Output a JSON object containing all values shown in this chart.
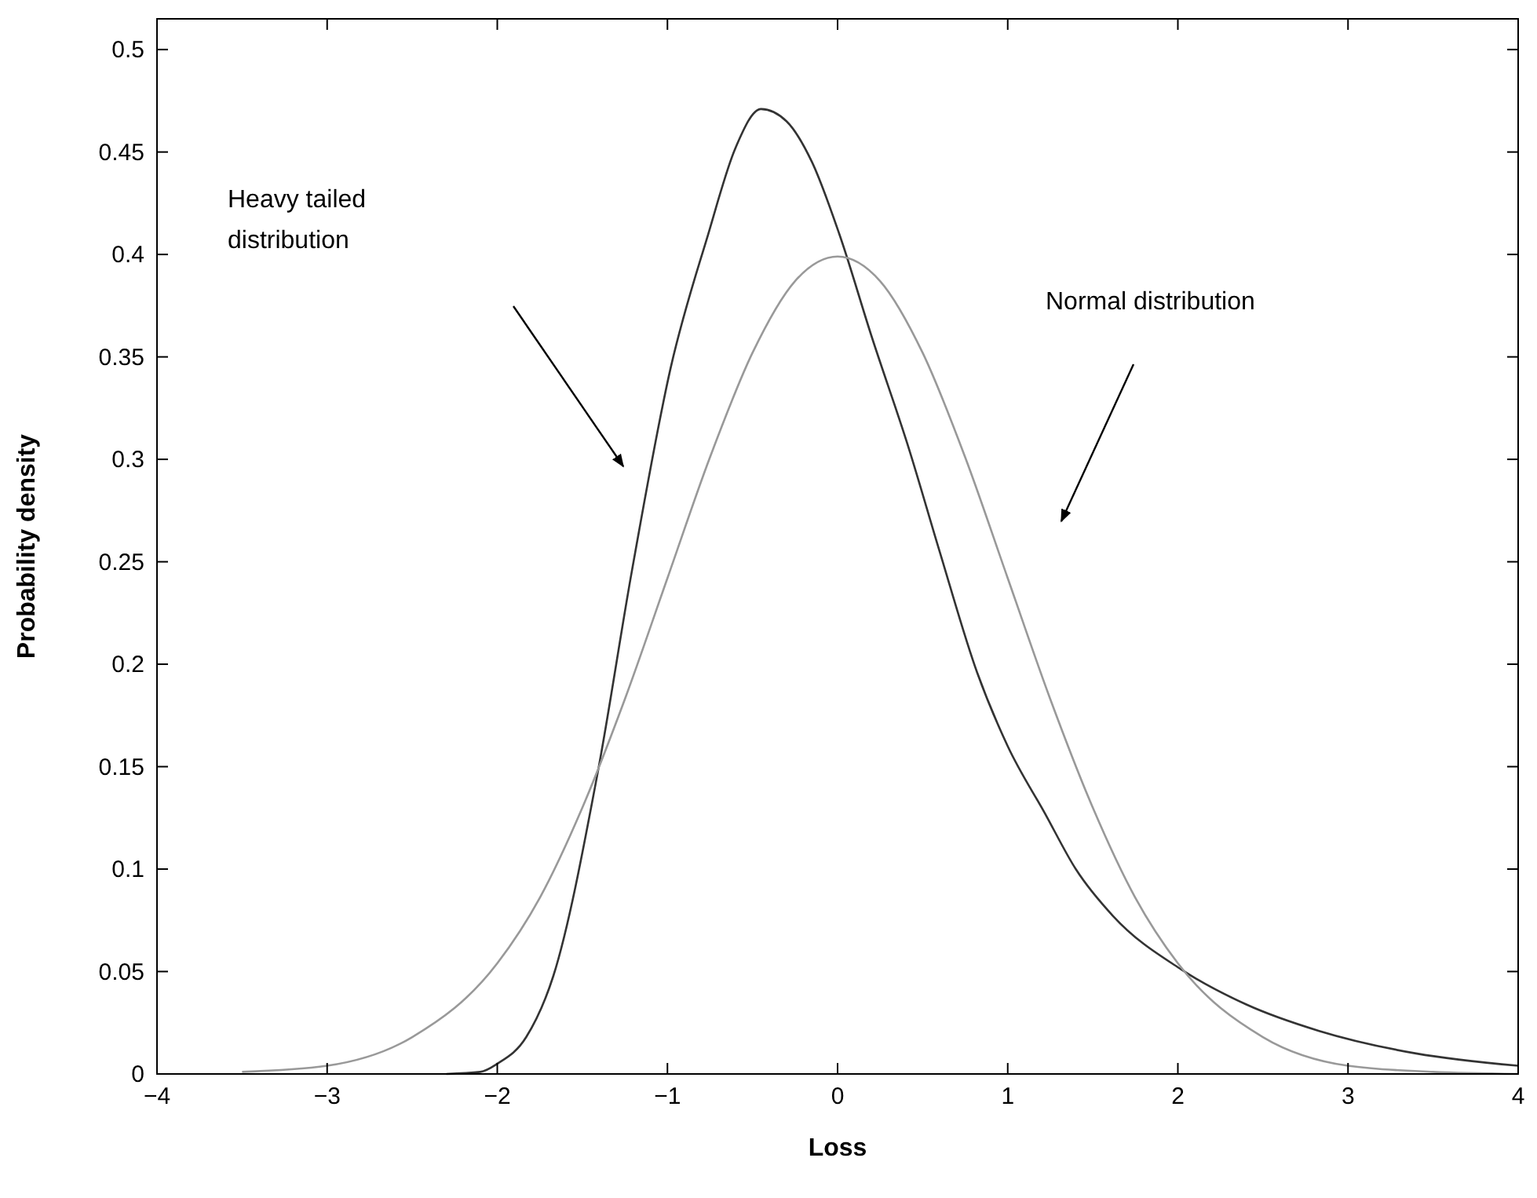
{
  "chart_data": {
    "type": "line",
    "xlabel": "Loss",
    "ylabel": "Probability density",
    "xlim": [
      -4,
      4
    ],
    "ylim": [
      0,
      0.515
    ],
    "xticks": [
      {
        "value": -4,
        "label": "−4"
      },
      {
        "value": -3,
        "label": "−3"
      },
      {
        "value": -2,
        "label": "−2"
      },
      {
        "value": -1,
        "label": "−1"
      },
      0,
      1,
      2,
      3,
      4
    ],
    "yticks": [
      0,
      0.05,
      0.1,
      0.15,
      0.2,
      0.25,
      0.3,
      0.35,
      0.4,
      0.45,
      0.5
    ],
    "grid": false,
    "marker": "none",
    "line_style": "solid",
    "annotations": [
      "Heavy tailed\ndistribution",
      "Normal distribution"
    ],
    "series": [
      {
        "color": "#333333",
        "x": [
          -2.3,
          -2.1,
          -2.0,
          -1.83,
          -1.67,
          -1.41,
          -1.21,
          -0.98,
          -0.76,
          -0.6,
          -0.45,
          -0.3,
          -0.15,
          0.01,
          0.2,
          0.42,
          0.6,
          0.82,
          1.0,
          1.22,
          1.4,
          1.62,
          2.02,
          2.4,
          2.83,
          3.4,
          4
        ],
        "values": [
          0,
          0.001,
          0.005,
          0.018,
          0.048,
          0.147,
          0.245,
          0.345,
          0.41,
          0.452,
          0.471,
          0.465,
          0.445,
          0.41,
          0.36,
          0.305,
          0.255,
          0.196,
          0.16,
          0.127,
          0.1,
          0.077,
          0.051,
          0.034,
          0.021,
          0.01,
          0.004
        ]
      },
      {
        "color": "#999999",
        "x": [
          -3.5,
          -3,
          -2.5,
          -2,
          -1.75,
          -1.5,
          -1.25,
          -1,
          -0.75,
          -0.5,
          -0.25,
          0,
          0.25,
          0.5,
          0.75,
          1,
          1.25,
          1.5,
          1.75,
          2,
          2.5,
          3,
          3.5,
          4
        ],
        "values": [
          0.001,
          0.004,
          0.018,
          0.054,
          0.086,
          0.13,
          0.183,
          0.242,
          0.301,
          0.352,
          0.387,
          0.399,
          0.387,
          0.352,
          0.301,
          0.242,
          0.183,
          0.13,
          0.086,
          0.054,
          0.018,
          0.004,
          0.001,
          0
        ]
      }
    ]
  }
}
